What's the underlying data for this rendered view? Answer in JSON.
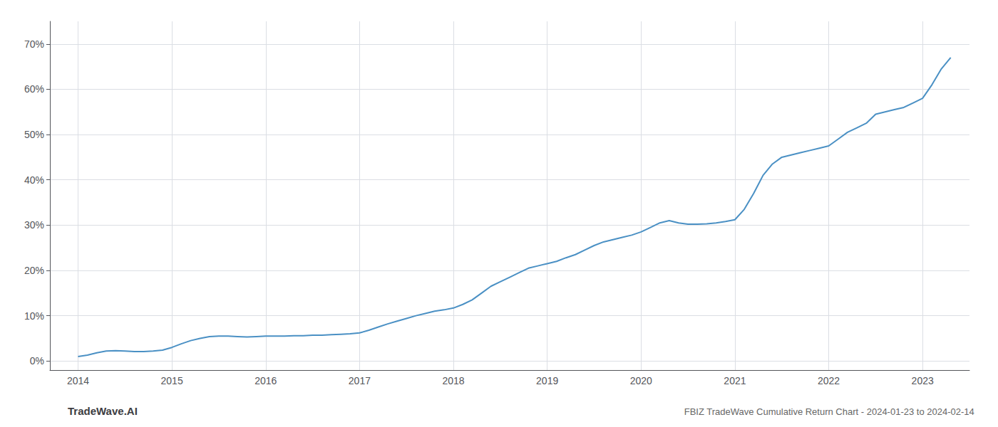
{
  "chart_data": {
    "type": "line",
    "title": "FBIZ TradeWave Cumulative Return Chart - 2024-01-23 to 2024-02-14",
    "annotations": [
      {
        "text": "TradeWave.AI"
      }
    ],
    "x": [
      2014.0,
      2014.1,
      2014.2,
      2014.3,
      2014.4,
      2014.5,
      2014.6,
      2014.7,
      2014.8,
      2014.9,
      2015.0,
      2015.1,
      2015.2,
      2015.3,
      2015.4,
      2015.5,
      2015.6,
      2015.7,
      2015.8,
      2015.9,
      2016.0,
      2016.1,
      2016.2,
      2016.3,
      2016.4,
      2016.5,
      2016.6,
      2016.7,
      2016.8,
      2016.9,
      2017.0,
      2017.1,
      2017.2,
      2017.3,
      2017.4,
      2017.5,
      2017.6,
      2017.7,
      2017.8,
      2017.9,
      2018.0,
      2018.1,
      2018.2,
      2018.3,
      2018.4,
      2018.5,
      2018.6,
      2018.7,
      2018.8,
      2018.9,
      2019.0,
      2019.1,
      2019.2,
      2019.3,
      2019.4,
      2019.5,
      2019.6,
      2019.7,
      2019.8,
      2019.9,
      2020.0,
      2020.1,
      2020.2,
      2020.3,
      2020.4,
      2020.5,
      2020.6,
      2020.7,
      2020.8,
      2020.9,
      2021.0,
      2021.1,
      2021.2,
      2021.3,
      2021.4,
      2021.5,
      2021.6,
      2021.7,
      2021.8,
      2021.9,
      2022.0,
      2022.1,
      2022.2,
      2022.3,
      2022.4,
      2022.5,
      2022.6,
      2022.7,
      2022.8,
      2022.9,
      2023.0,
      2023.1,
      2023.2,
      2023.3
    ],
    "values": [
      1.0,
      1.3,
      1.8,
      2.2,
      2.3,
      2.2,
      2.1,
      2.1,
      2.2,
      2.4,
      3.0,
      3.8,
      4.5,
      5.0,
      5.4,
      5.5,
      5.5,
      5.4,
      5.3,
      5.4,
      5.5,
      5.5,
      5.5,
      5.6,
      5.6,
      5.7,
      5.7,
      5.8,
      5.9,
      6.0,
      6.2,
      6.8,
      7.5,
      8.2,
      8.8,
      9.4,
      10.0,
      10.5,
      11.0,
      11.3,
      11.7,
      12.5,
      13.5,
      15.0,
      16.5,
      17.5,
      18.5,
      19.5,
      20.5,
      21.0,
      21.5,
      22.0,
      22.8,
      23.5,
      24.5,
      25.5,
      26.3,
      26.8,
      27.3,
      27.8,
      28.5,
      29.5,
      30.5,
      31.0,
      30.5,
      30.2,
      30.2,
      30.3,
      30.5,
      30.8,
      31.2,
      33.5,
      37.0,
      41.0,
      43.5,
      45.0,
      45.5,
      46.0,
      46.5,
      47.0,
      47.5,
      49.0,
      50.5,
      51.5,
      52.5,
      54.5,
      55.0,
      55.5,
      56.0,
      57.0,
      58.0,
      61.0,
      64.5,
      67.0
    ],
    "color": "#4a90c4",
    "xlim": [
      2013.7,
      2023.5
    ],
    "xticks": [
      2014,
      2015,
      2016,
      2017,
      2018,
      2019,
      2020,
      2021,
      2022,
      2023
    ],
    "ylim": [
      -2,
      75
    ],
    "yticks": [
      {
        "value": 0,
        "label": "0%"
      },
      {
        "value": 10,
        "label": "10%"
      },
      {
        "value": 20,
        "label": "20%"
      },
      {
        "value": 30,
        "label": "30%"
      },
      {
        "value": 40,
        "label": "40%"
      },
      {
        "value": 50,
        "label": "50%"
      },
      {
        "value": 60,
        "label": "60%"
      },
      {
        "value": 70,
        "label": "70%"
      }
    ],
    "grid": true
  }
}
